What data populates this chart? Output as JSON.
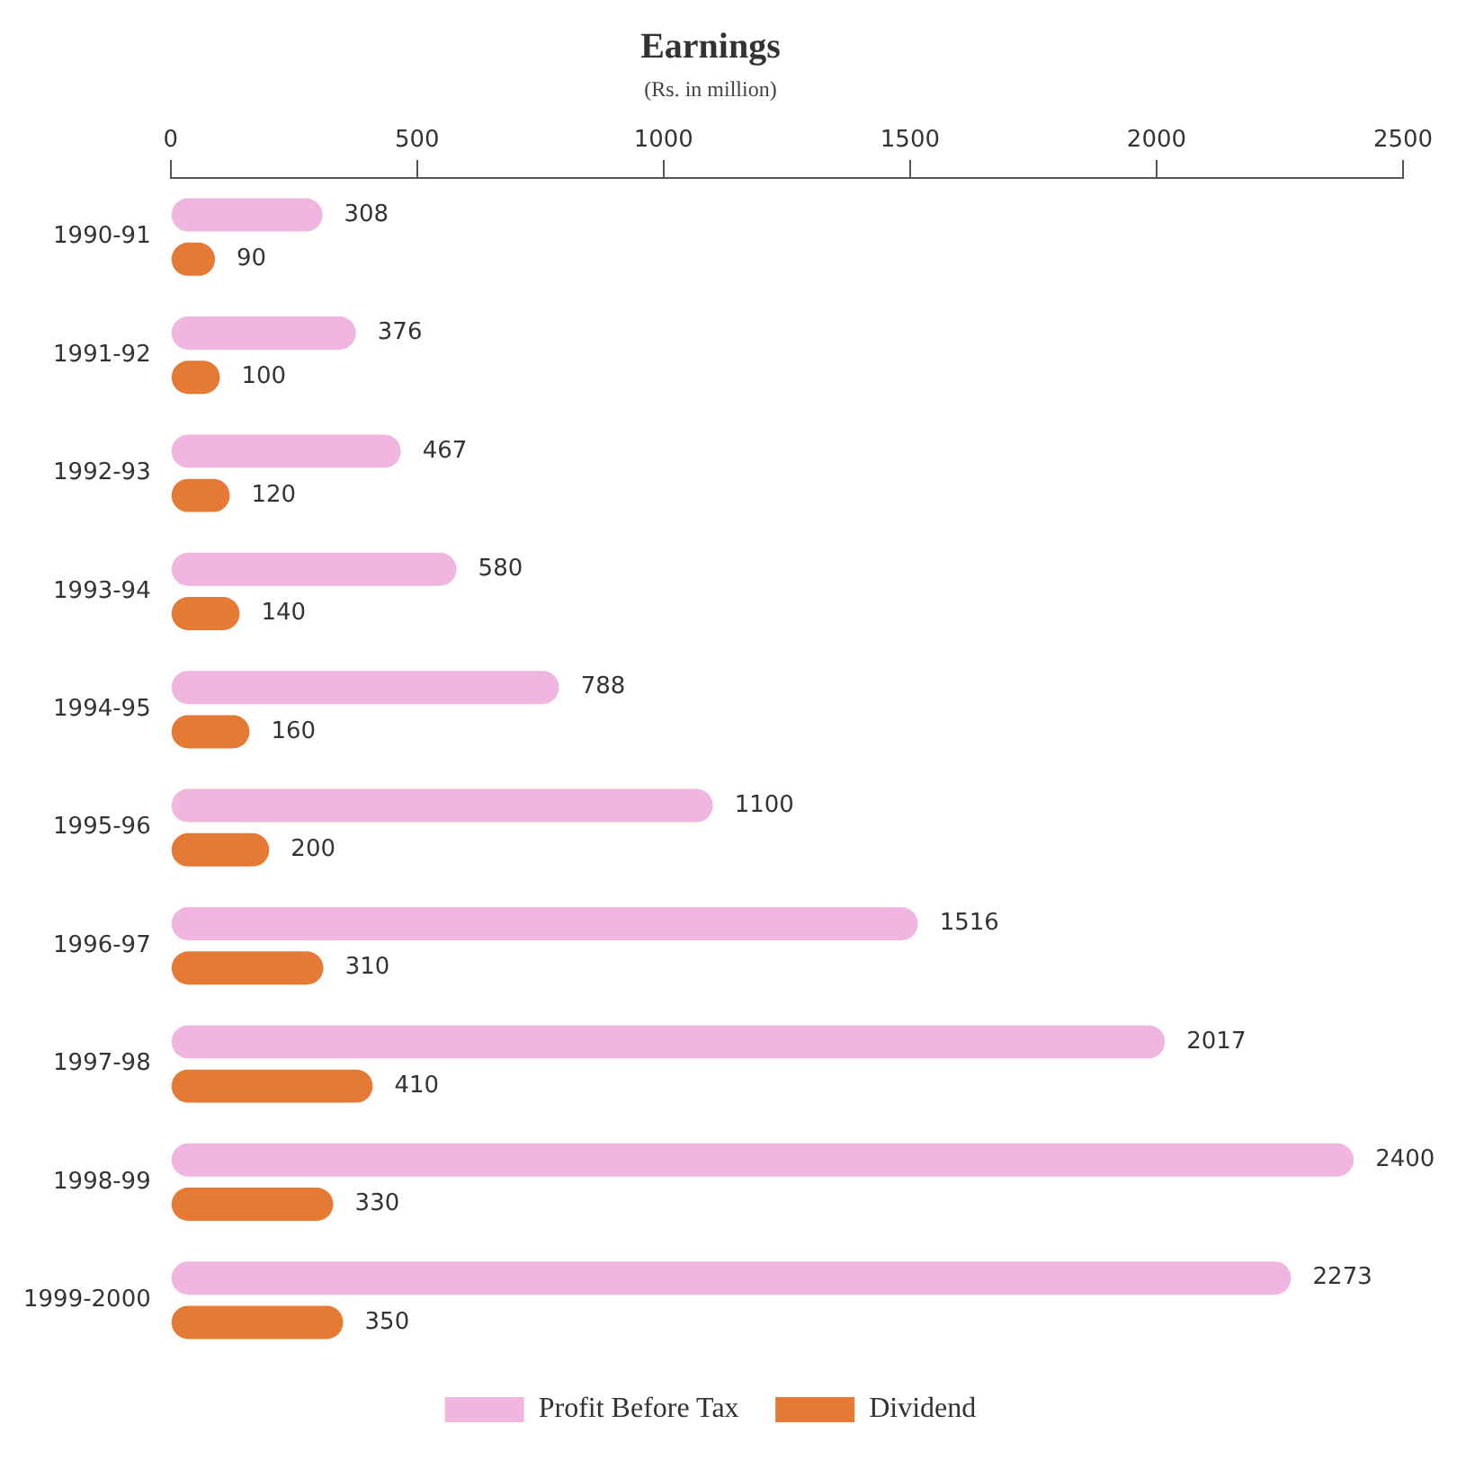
{
  "chart_data": {
    "type": "bar",
    "orientation": "horizontal",
    "title": "Earnings",
    "subtitle": "(Rs. in million)",
    "categories": [
      "1990-91",
      "1991-92",
      "1992-93",
      "1993-94",
      "1994-95",
      "1995-96",
      "1996-97",
      "1997-98",
      "1998-99",
      "1999-2000"
    ],
    "series": [
      {
        "name": "Profit Before Tax",
        "color": "#f0b6e0",
        "values": [
          308,
          376,
          467,
          580,
          788,
          1100,
          1516,
          2017,
          2400,
          2273
        ]
      },
      {
        "name": "Dividend",
        "color": "#e47a34",
        "values": [
          90,
          100,
          120,
          140,
          160,
          200,
          310,
          410,
          330,
          350
        ]
      }
    ],
    "xlim": [
      0,
      2500
    ],
    "xticks": [
      0,
      500,
      1000,
      1500,
      2000,
      2500
    ],
    "data_labels": true,
    "legend": "bottom",
    "grid": false
  }
}
